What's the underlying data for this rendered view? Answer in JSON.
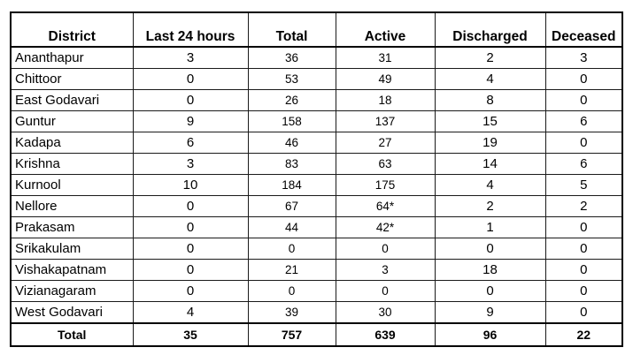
{
  "table": {
    "headers": {
      "district": "District",
      "last_24_hours": "Last 24 hours",
      "total": "Total",
      "active": "Active",
      "discharged": "Discharged",
      "deceased": "Deceased"
    },
    "rows": [
      {
        "district": "Ananthapur",
        "last_24_hours": "3",
        "total": "36",
        "active": "31",
        "discharged": "2",
        "deceased": "3"
      },
      {
        "district": "Chittoor",
        "last_24_hours": "0",
        "total": "53",
        "active": "49",
        "discharged": "4",
        "deceased": "0"
      },
      {
        "district": "East Godavari",
        "last_24_hours": "0",
        "total": "26",
        "active": "18",
        "discharged": "8",
        "deceased": "0"
      },
      {
        "district": "Guntur",
        "last_24_hours": "9",
        "total": "158",
        "active": "137",
        "discharged": "15",
        "deceased": "6"
      },
      {
        "district": "Kadapa",
        "last_24_hours": "6",
        "total": "46",
        "active": "27",
        "discharged": "19",
        "deceased": "0"
      },
      {
        "district": "Krishna",
        "last_24_hours": "3",
        "total": "83",
        "active": "63",
        "discharged": "14",
        "deceased": "6"
      },
      {
        "district": "Kurnool",
        "last_24_hours": "10",
        "total": "184",
        "active": "175",
        "discharged": "4",
        "deceased": "5"
      },
      {
        "district": "Nellore",
        "last_24_hours": "0",
        "total": "67",
        "active": "64*",
        "discharged": "2",
        "deceased": "2"
      },
      {
        "district": "Prakasam",
        "last_24_hours": "0",
        "total": "44",
        "active": "42*",
        "discharged": "1",
        "deceased": "0"
      },
      {
        "district": "Srikakulam",
        "last_24_hours": "0",
        "total": "0",
        "active": "0",
        "discharged": "0",
        "deceased": "0"
      },
      {
        "district": "Vishakapatnam",
        "last_24_hours": "0",
        "total": "21",
        "active": "3",
        "discharged": "18",
        "deceased": "0"
      },
      {
        "district": "Vizianagaram",
        "last_24_hours": "0",
        "total": "0",
        "active": "0",
        "discharged": "0",
        "deceased": "0"
      },
      {
        "district": "West Godavari",
        "last_24_hours": "4",
        "total": "39",
        "active": "30",
        "discharged": "9",
        "deceased": "0"
      }
    ],
    "totals": {
      "label": "Total",
      "last_24_hours": "35",
      "total": "757",
      "active": "639",
      "discharged": "96",
      "deceased": "22"
    }
  }
}
